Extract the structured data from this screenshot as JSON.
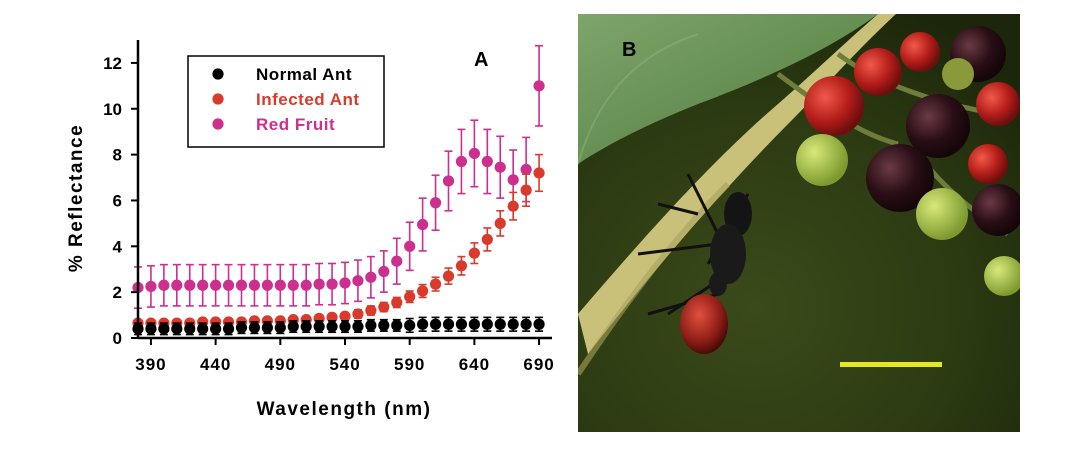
{
  "chart_data": {
    "type": "scatter",
    "panel_label": "A",
    "xlabel": "Wavelength (nm)",
    "ylabel": "% Reflectance",
    "xlim": [
      380,
      700
    ],
    "ylim": [
      0,
      13
    ],
    "x_ticks": [
      390,
      440,
      490,
      540,
      590,
      640,
      690
    ],
    "y_ticks": [
      0,
      2,
      4,
      6,
      8,
      10,
      12
    ],
    "grid": false,
    "legend_position": "top-left",
    "x": [
      380,
      390,
      400,
      410,
      420,
      430,
      440,
      450,
      460,
      470,
      480,
      490,
      500,
      510,
      520,
      530,
      540,
      550,
      560,
      570,
      580,
      590,
      600,
      610,
      620,
      630,
      640,
      650,
      660,
      670,
      680,
      690
    ],
    "series": [
      {
        "name": "Normal Ant",
        "color": "#000000",
        "values": [
          0.4,
          0.4,
          0.4,
          0.4,
          0.4,
          0.4,
          0.4,
          0.4,
          0.45,
          0.45,
          0.45,
          0.45,
          0.5,
          0.5,
          0.5,
          0.5,
          0.5,
          0.5,
          0.55,
          0.55,
          0.55,
          0.55,
          0.6,
          0.6,
          0.6,
          0.6,
          0.6,
          0.6,
          0.6,
          0.6,
          0.6,
          0.6
        ],
        "errors": [
          0.25,
          0.25,
          0.25,
          0.25,
          0.25,
          0.25,
          0.25,
          0.25,
          0.25,
          0.25,
          0.25,
          0.25,
          0.25,
          0.25,
          0.25,
          0.25,
          0.25,
          0.25,
          0.25,
          0.25,
          0.25,
          0.3,
          0.3,
          0.3,
          0.3,
          0.3,
          0.3,
          0.3,
          0.3,
          0.3,
          0.3,
          0.3
        ]
      },
      {
        "name": "Infected Ant",
        "color": "#d93a2b",
        "values": [
          0.65,
          0.65,
          0.65,
          0.65,
          0.65,
          0.7,
          0.7,
          0.7,
          0.7,
          0.75,
          0.75,
          0.75,
          0.8,
          0.8,
          0.85,
          0.9,
          0.95,
          1.05,
          1.2,
          1.35,
          1.55,
          1.8,
          2.05,
          2.35,
          2.7,
          3.15,
          3.7,
          4.3,
          5.0,
          5.75,
          6.45,
          7.2
        ],
        "errors": [
          0.12,
          0.12,
          0.12,
          0.12,
          0.12,
          0.12,
          0.12,
          0.12,
          0.12,
          0.12,
          0.12,
          0.12,
          0.12,
          0.12,
          0.15,
          0.15,
          0.15,
          0.18,
          0.2,
          0.2,
          0.22,
          0.25,
          0.28,
          0.3,
          0.35,
          0.4,
          0.45,
          0.5,
          0.55,
          0.6,
          0.7,
          0.8
        ]
      },
      {
        "name": "Red Fruit",
        "color": "#cc2f8d",
        "values": [
          2.2,
          2.25,
          2.3,
          2.3,
          2.3,
          2.3,
          2.3,
          2.3,
          2.3,
          2.3,
          2.3,
          2.3,
          2.3,
          2.3,
          2.35,
          2.35,
          2.4,
          2.5,
          2.65,
          2.9,
          3.35,
          4.0,
          4.95,
          5.9,
          6.85,
          7.7,
          8.05,
          7.7,
          7.45,
          6.9,
          7.35,
          11.0
        ],
        "errors": [
          0.9,
          0.9,
          0.9,
          0.9,
          0.9,
          0.9,
          0.9,
          0.9,
          0.9,
          0.9,
          0.9,
          0.9,
          0.9,
          0.9,
          0.9,
          0.9,
          0.9,
          0.9,
          0.9,
          0.9,
          1.0,
          1.05,
          1.15,
          1.2,
          1.3,
          1.4,
          1.45,
          1.4,
          1.35,
          1.3,
          1.4,
          1.75
        ]
      }
    ]
  },
  "photo": {
    "panel_label": "B",
    "scale_bar_color": "#e6e621"
  }
}
